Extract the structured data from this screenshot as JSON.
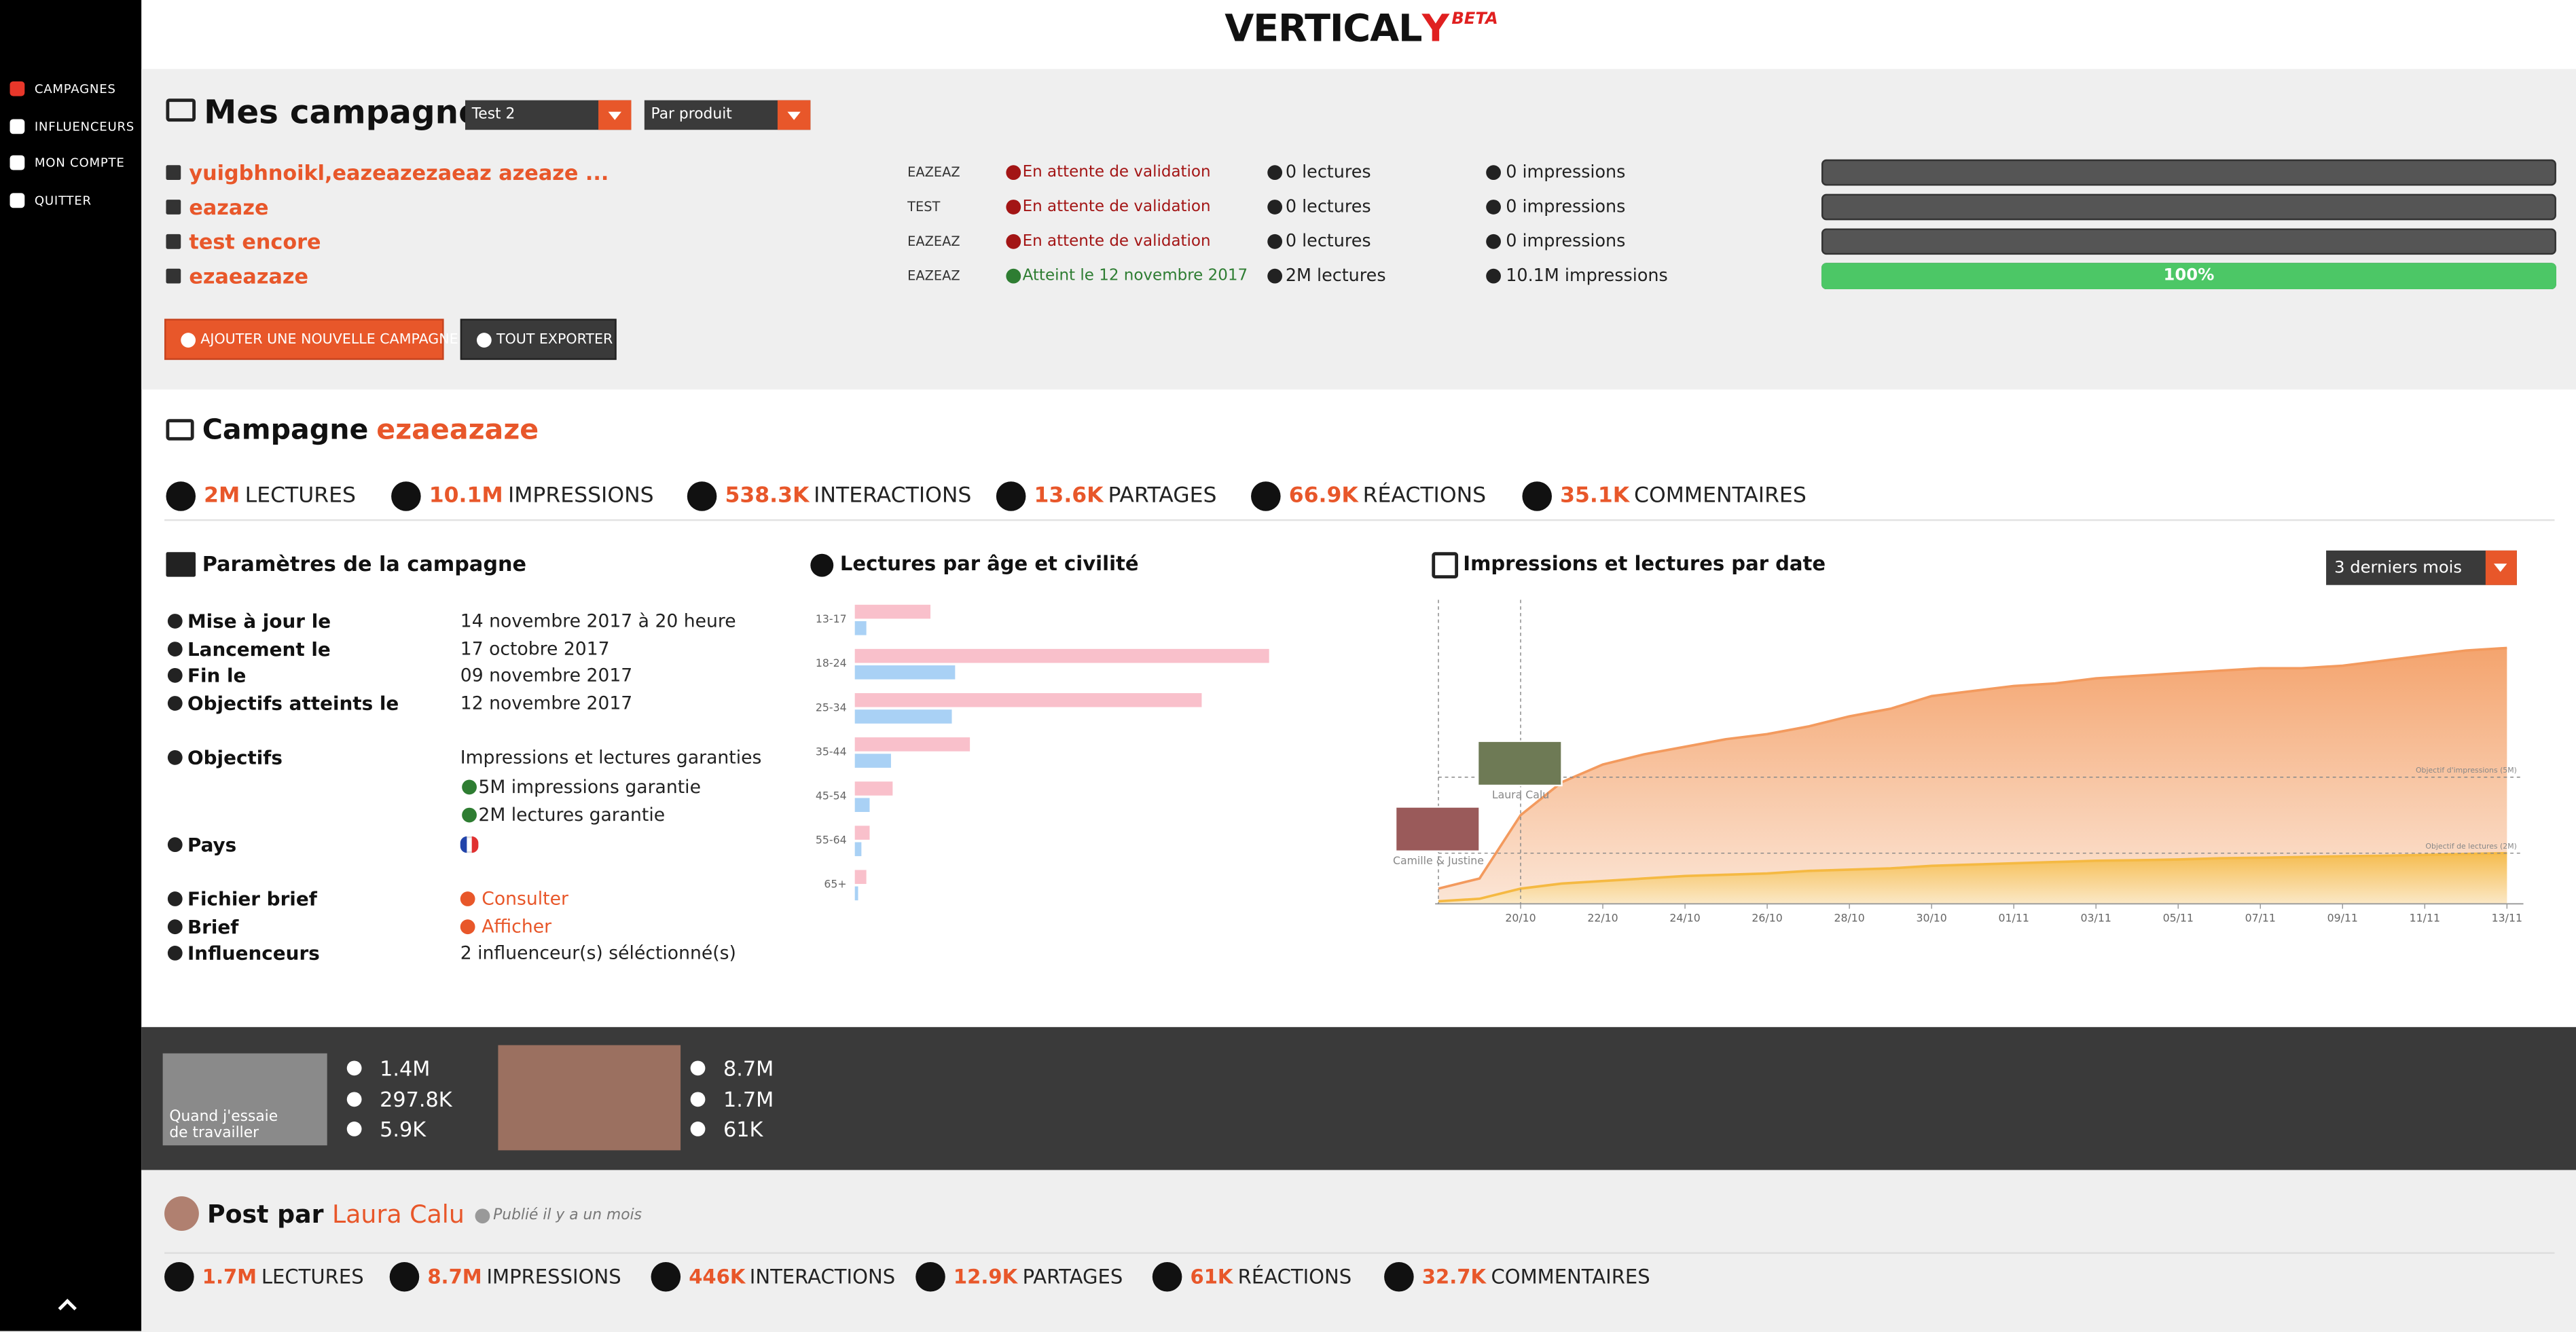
{
  "header": {
    "logo": "VERTICAL",
    "logo_accent": "Y",
    "badge": "BETA"
  },
  "sidebar": {
    "items": [
      "CAMPAGNES",
      "INFLUENCEURS",
      "MON COMPTE",
      "QUITTER"
    ],
    "active": 0
  },
  "campaigns": {
    "title": "Mes campagnes",
    "filters": [
      "Test 2",
      "Par produit"
    ],
    "rows": [
      {
        "name": "yuigbhnoikl,eazeazezaeaz azeaze ...",
        "code": "EAZEAZ",
        "status": "En attente de validation",
        "status_color": "#a31515",
        "lectures": "0 lectures",
        "impressions": "0 impressions",
        "progress": 0
      },
      {
        "name": "eazaze",
        "code": "TEST",
        "status": "En attente de validation",
        "status_color": "#a31515",
        "lectures": "0 lectures",
        "impressions": "0 impressions",
        "progress": 0
      },
      {
        "name": "test encore",
        "code": "EAZEAZ",
        "status": "En attente de validation",
        "status_color": "#a31515",
        "lectures": "0 lectures",
        "impressions": "0 impressions",
        "progress": 0
      },
      {
        "name": "ezaeazaze",
        "code": "EAZEAZ",
        "status": "Atteint le 12 novembre 2017",
        "status_color": "#2e7d32",
        "lectures": "2M lectures",
        "impressions": "10.1M impressions",
        "progress": 100,
        "progress_label": "100%"
      }
    ],
    "buttons": [
      "AJOUTER UNE NOUVELLE CAMPAGNE",
      "TOUT EXPORTER"
    ]
  },
  "campaign": {
    "title": "Campagne",
    "name": "ezaeazaze",
    "stats": [
      {
        "value": "2M",
        "label": "LECTURES"
      },
      {
        "value": "10.1M",
        "label": "IMPRESSIONS"
      },
      {
        "value": "538.3K",
        "label": "INTERACTIONS"
      },
      {
        "value": "13.6K",
        "label": "PARTAGES"
      },
      {
        "value": "66.9K",
        "label": "RÉACTIONS"
      },
      {
        "value": "35.1K",
        "label": "COMMENTAIRES"
      }
    ],
    "params_title": "Paramètres de la campagne",
    "params": [
      {
        "label": "Mise à jour le",
        "value": "14 novembre 2017 à 20 heure"
      },
      {
        "label": "Lancement le",
        "value": "17 octobre 2017"
      },
      {
        "label": "Fin le",
        "value": "09 novembre 2017"
      },
      {
        "label": "Objectifs atteints le",
        "value": "12 novembre 2017"
      },
      {
        "label": "Objectifs",
        "value": "Impressions et lectures garanties",
        "items": [
          "5M impressions garantie",
          "2M lectures garantie"
        ]
      },
      {
        "label": "Pays"
      },
      {
        "label": "Fichier brief",
        "link": "Consulter"
      },
      {
        "label": "Brief",
        "link": "Afficher"
      },
      {
        "label": "Influenceurs",
        "value": "2 influenceur(s) séléctionné(s)"
      }
    ],
    "period": "3 derniers mois"
  },
  "chart_data": [
    {
      "type": "hbar",
      "title": "Lectures par âge et civilité",
      "categories": [
        "13-17",
        "18-24",
        "25-34",
        "35-44",
        "45-54",
        "55-64",
        "65+"
      ],
      "xlim": [
        0,
        260
      ],
      "series": [
        {
          "color": "#f9c0cb",
          "values": [
            46,
            252,
            211,
            70,
            23,
            9,
            7
          ]
        },
        {
          "color": "#a9d1f5",
          "values": [
            7,
            61,
            59,
            22,
            9,
            4,
            2
          ]
        }
      ]
    },
    {
      "type": "area",
      "title": "Impressions et lectures par date",
      "ylim": [
        0,
        12
      ],
      "categories": [
        null,
        null,
        "20/10",
        null,
        "22/10",
        null,
        "24/10",
        null,
        "26/10",
        null,
        "28/10",
        null,
        "30/10",
        null,
        "01/11",
        null,
        "03/11",
        null,
        "05/11",
        null,
        "07/11",
        null,
        "09/11",
        null,
        "11/11",
        null,
        "13/11"
      ],
      "series": [
        {
          "color": "#f39a5e",
          "values": [
            0.6,
            1.0,
            3.5,
            4.8,
            5.5,
            5.9,
            6.2,
            6.5,
            6.7,
            7.0,
            7.4,
            7.7,
            8.2,
            8.4,
            8.6,
            8.7,
            8.9,
            9.0,
            9.1,
            9.2,
            9.3,
            9.3,
            9.4,
            9.6,
            9.8,
            10.0,
            10.1
          ]
        },
        {
          "color": "#f5b942",
          "values": [
            0.1,
            0.2,
            0.6,
            0.8,
            0.9,
            1.0,
            1.1,
            1.15,
            1.2,
            1.3,
            1.35,
            1.4,
            1.5,
            1.55,
            1.6,
            1.65,
            1.7,
            1.72,
            1.75,
            1.8,
            1.82,
            1.85,
            1.88,
            1.9,
            1.93,
            1.97,
            2.0
          ]
        }
      ],
      "goals": [
        {
          "value": 5,
          "label": "Objectif d'impressions (5M)"
        },
        {
          "value": 2,
          "label": "Objectif de lectures (2M)"
        }
      ],
      "influencers": [
        {
          "name": "Laura Calu",
          "at": 2
        },
        {
          "name": "Camille & Justine",
          "at": 0
        }
      ]
    }
  ],
  "posts": [
    {
      "caption": "Quand j'essaie de travailler",
      "views": "1.4M",
      "lectures": "297.8K",
      "likes": "5.9K"
    },
    {
      "views": "8.7M",
      "lectures": "1.7M",
      "likes": "61K"
    }
  ],
  "post": {
    "prefix": "Post par",
    "author": "Laura Calu",
    "published": "Publié il y a un mois",
    "stats": [
      {
        "value": "1.7M",
        "label": "LECTURES"
      },
      {
        "value": "8.7M",
        "label": "IMPRESSIONS"
      },
      {
        "value": "446K",
        "label": "INTERACTIONS"
      },
      {
        "value": "12.9K",
        "label": "PARTAGES"
      },
      {
        "value": "61K",
        "label": "RÉACTIONS"
      },
      {
        "value": "32.7K",
        "label": "COMMENTAIRES"
      }
    ]
  }
}
